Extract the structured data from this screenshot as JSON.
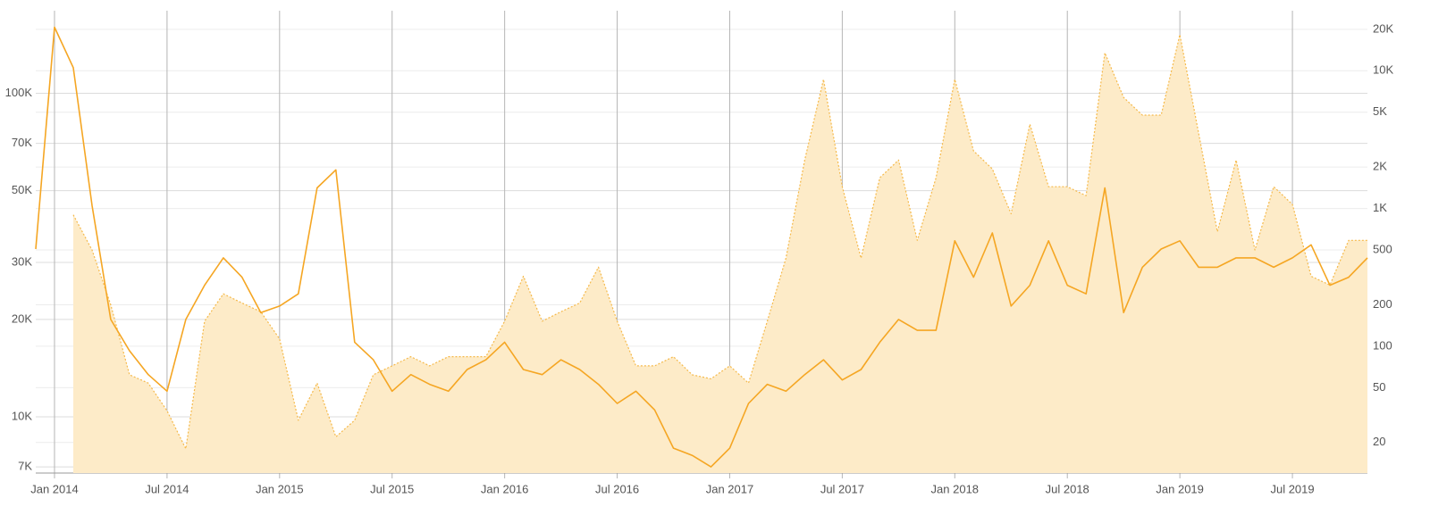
{
  "chart_data": {
    "type": "line",
    "x": [
      "2013-12",
      "2014-01",
      "2014-02",
      "2014-03",
      "2014-04",
      "2014-05",
      "2014-06",
      "2014-07",
      "2014-08",
      "2014-09",
      "2014-10",
      "2014-11",
      "2014-12",
      "2015-01",
      "2015-02",
      "2015-03",
      "2015-04",
      "2015-05",
      "2015-06",
      "2015-07",
      "2015-08",
      "2015-09",
      "2015-10",
      "2015-11",
      "2015-12",
      "2016-01",
      "2016-02",
      "2016-03",
      "2016-04",
      "2016-05",
      "2016-06",
      "2016-07",
      "2016-08",
      "2016-09",
      "2016-10",
      "2016-11",
      "2016-12",
      "2017-01",
      "2017-02",
      "2017-03",
      "2017-04",
      "2017-05",
      "2017-06",
      "2017-07",
      "2017-08",
      "2017-09",
      "2017-10",
      "2017-11",
      "2017-12",
      "2018-01",
      "2018-02",
      "2018-03",
      "2018-04",
      "2018-05",
      "2018-06",
      "2018-07",
      "2018-08",
      "2018-09",
      "2018-10",
      "2018-11",
      "2018-12",
      "2019-01",
      "2019-02",
      "2019-03",
      "2019-04",
      "2019-05",
      "2019-06",
      "2019-07",
      "2019-08",
      "2019-09",
      "2019-10",
      "2019-11"
    ],
    "xlim": [
      "2013-12",
      "2019-11"
    ],
    "xticks": [
      {
        "value": "2014-01",
        "label": "Jan 2014"
      },
      {
        "value": "2014-07",
        "label": "Jul 2014"
      },
      {
        "value": "2015-01",
        "label": "Jan 2015"
      },
      {
        "value": "2015-07",
        "label": "Jul 2015"
      },
      {
        "value": "2016-01",
        "label": "Jan 2016"
      },
      {
        "value": "2016-07",
        "label": "Jul 2016"
      },
      {
        "value": "2017-01",
        "label": "Jan 2017"
      },
      {
        "value": "2017-07",
        "label": "Jul 2017"
      },
      {
        "value": "2018-01",
        "label": "Jan 2018"
      },
      {
        "value": "2018-07",
        "label": "Jul 2018"
      },
      {
        "value": "2019-01",
        "label": "Jan 2019"
      },
      {
        "value": "2019-07",
        "label": "Jul 2019"
      }
    ],
    "ylog": true,
    "ylim": [
      6700,
      180000
    ],
    "yticks": [
      {
        "value": 7000,
        "label": "7K"
      },
      {
        "value": 10000,
        "label": "10K"
      },
      {
        "value": 20000,
        "label": "20K"
      },
      {
        "value": 30000,
        "label": "30K"
      },
      {
        "value": 50000,
        "label": "50K"
      },
      {
        "value": 70000,
        "label": "70K"
      },
      {
        "value": 100000,
        "label": "100K"
      }
    ],
    "y2log": true,
    "y2lim": [
      12,
      27300
    ],
    "y2ticks": [
      20,
      50,
      100,
      200,
      500,
      {
        "value": 1000,
        "label": "1K"
      },
      {
        "value": 2000,
        "label": "2K"
      },
      {
        "value": 5000,
        "label": "5K"
      },
      {
        "value": 10000,
        "label": "10K"
      },
      {
        "value": 20000,
        "label": "20K"
      }
    ],
    "grid": true,
    "series": [
      {
        "color": "#f5a623",
        "style": "solid",
        "values": [
          33000,
          160000,
          120000,
          45000,
          20000,
          16000,
          13500,
          12000,
          20000,
          25500,
          31000,
          27000,
          21000,
          22000,
          24000,
          51000,
          58000,
          17000,
          15000,
          12000,
          13500,
          12600,
          12000,
          14000,
          15000,
          17000,
          14000,
          13500,
          15000,
          14000,
          12600,
          11000,
          12000,
          10500,
          8000,
          7600,
          7000,
          8000,
          11000,
          12600,
          12000,
          13500,
          15000,
          13000,
          14000,
          17000,
          20000,
          18500,
          18500,
          35000,
          27000,
          37000,
          22000,
          25500,
          35000,
          25500,
          24000,
          51000,
          21000,
          29000,
          33000,
          35000,
          29000,
          29000,
          31000,
          31000,
          29000,
          31000,
          34000,
          25500,
          27000,
          31000
        ]
      },
      {
        "color": "#f5b94a",
        "fill": "#fdebc8",
        "style": "dotted",
        "axis": "y2",
        "values": [
          null,
          null,
          900,
          500,
          200,
          62,
          54,
          34,
          18,
          152,
          240,
          206,
          178,
          113,
          29,
          54,
          22,
          29,
          62,
          72,
          84,
          72,
          84,
          84,
          84,
          152,
          322,
          152,
          178,
          206,
          375,
          152,
          72,
          72,
          84,
          62,
          58,
          72,
          54,
          152,
          436,
          2250,
          8660,
          1440,
          436,
          1670,
          2250,
          587,
          1670,
          8660,
          2620,
          1940,
          916,
          4100,
          1440,
          1440,
          1240,
          13500,
          6400,
          4760,
          4760,
          18300,
          3530,
          680,
          2250,
          500,
          1440,
          1070,
          322,
          278,
          587,
          587
        ]
      }
    ]
  }
}
